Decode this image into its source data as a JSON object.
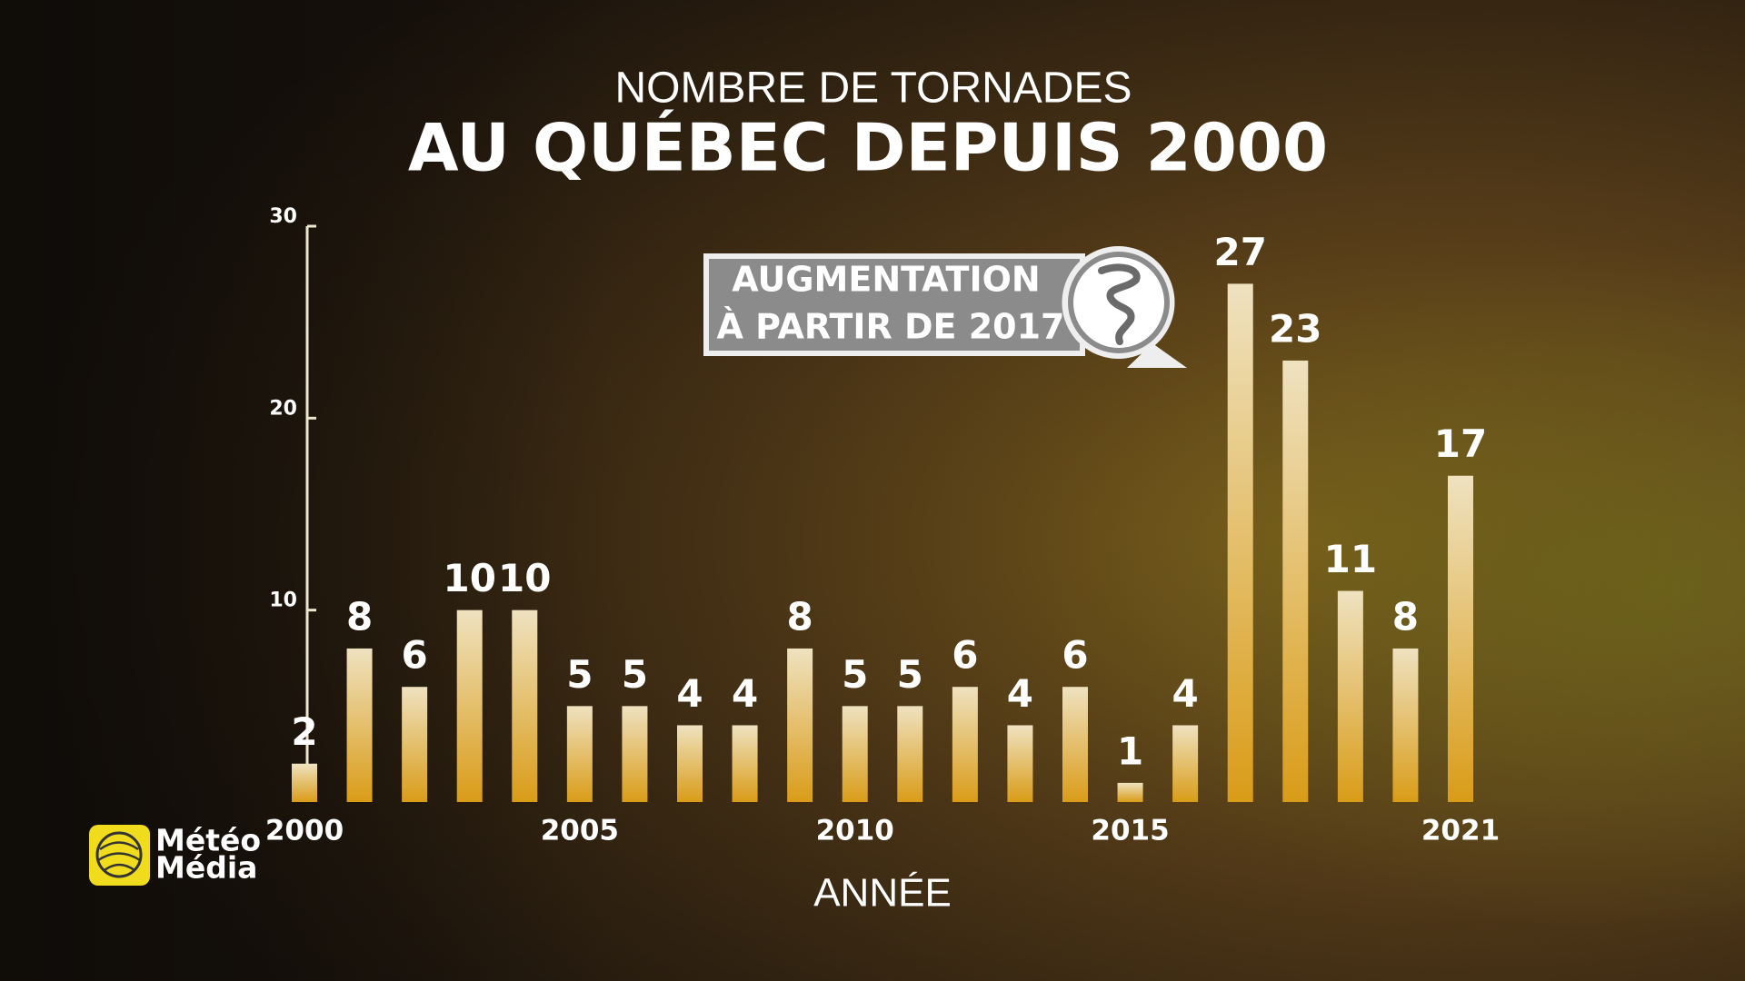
{
  "chart_data": {
    "type": "bar",
    "title": "NOMBRE DE TORNADES",
    "subtitle": "AU QUÉBEC DEPUIS 2000",
    "x_label": "ANNÉE",
    "x": [
      2000,
      2001,
      2002,
      2003,
      2004,
      2005,
      2006,
      2007,
      2008,
      2009,
      2010,
      2011,
      2012,
      2013,
      2014,
      2015,
      2016,
      2017,
      2018,
      2019,
      2020,
      2021
    ],
    "values": [
      2,
      8,
      6,
      10,
      10,
      5,
      5,
      4,
      4,
      8,
      5,
      5,
      6,
      4,
      6,
      1,
      4,
      27,
      23,
      11,
      8,
      17
    ],
    "color": "#d99c18",
    "xlim": [
      2000,
      2021
    ],
    "xticks": [
      2000,
      2005,
      2010,
      2015,
      2021
    ],
    "ylim": [
      0,
      30
    ],
    "yticks": [
      10,
      20,
      30
    ],
    "grid": false,
    "annotation": [
      "AUGMENTATION",
      "À PARTIR DE 2017"
    ]
  },
  "logo": [
    "Météo",
    "Média"
  ]
}
